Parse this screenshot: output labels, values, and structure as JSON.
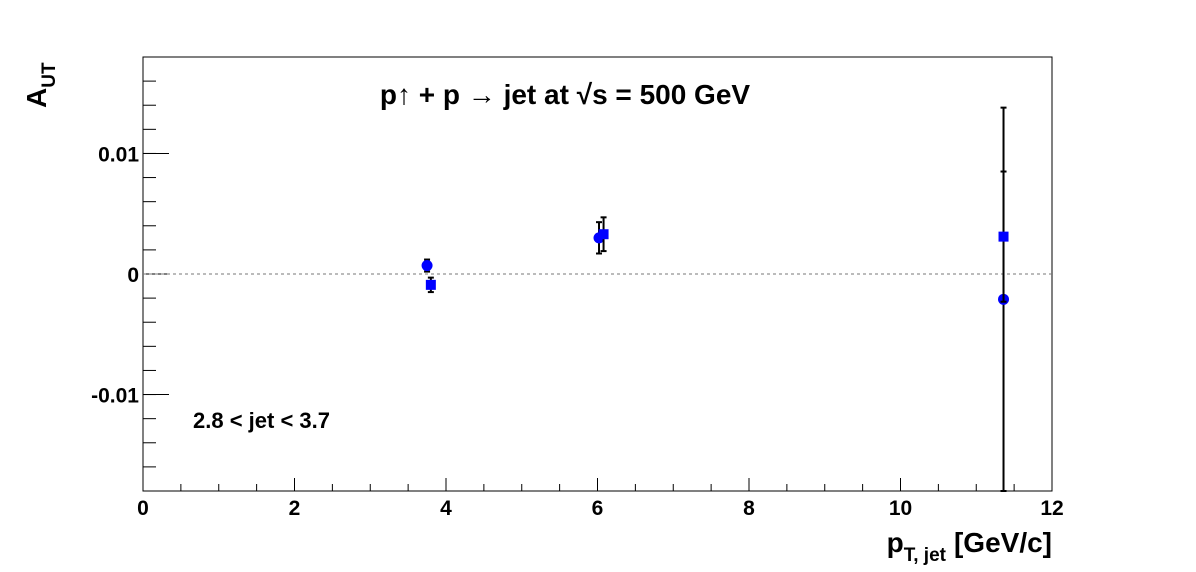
{
  "chart_data": {
    "type": "scatter",
    "title": "p↑ + p → jet at √s = 500 GeV",
    "annotation": "2.8 < jet < 3.7",
    "x_label": {
      "main": "p",
      "sub": "T, jet",
      "unit": "[GeV/c]"
    },
    "y_label": {
      "main": "A",
      "sub": "UT"
    },
    "xlim": [
      0,
      12
    ],
    "xticks": [
      0,
      2,
      4,
      6,
      8,
      10,
      12
    ],
    "ylim": [
      -0.018,
      0.018
    ],
    "yticks": [
      -0.01,
      0,
      0.01
    ],
    "zero_line": true,
    "series": [
      {
        "color": "#0000ff",
        "marker": "circle",
        "x": [
          3.75,
          6.02,
          11.36
        ],
        "values": [
          0.0007,
          0.003,
          -0.0021
        ],
        "errors": [
          0.0005,
          0.0013,
          0.0159
        ]
      },
      {
        "color": "#0000ff",
        "marker": "square",
        "x": [
          3.8,
          6.08,
          11.36
        ],
        "values": [
          -0.0009,
          0.0033,
          0.0031
        ],
        "errors": [
          0.0006,
          0.0014,
          0.0054
        ]
      }
    ]
  }
}
